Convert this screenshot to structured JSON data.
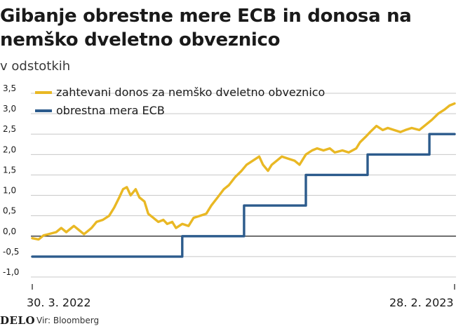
{
  "header": {
    "title": "Gibanje obrestne mere ECB in donosa na nemško dveletno obveznico",
    "subtitle": "v odstotkih"
  },
  "footer": {
    "logo": "DELO",
    "source": "Vir: Bloomberg"
  },
  "colors": {
    "yield": "#e9b824",
    "ecb": "#2c5b8c",
    "grid": "#c8c8c8"
  },
  "chart_data": {
    "type": "line",
    "title": "Gibanje obrestne mere ECB in donosa na nemško dveletno obveznico",
    "subtitle": "v odstotkih",
    "ylim": [
      -1.0,
      3.5
    ],
    "yticks": [
      -1.0,
      -0.5,
      0.0,
      0.5,
      1.0,
      1.5,
      2.0,
      2.5,
      3.0,
      3.5
    ],
    "ytick_labels": [
      "-1,0",
      "-0,5",
      "0,0",
      "0,5",
      "1,0",
      "1,5",
      "2,0",
      "2,5",
      "3,0",
      "3,5"
    ],
    "xlim": [
      "2022-03-30",
      "2023-02-28"
    ],
    "xtick_labels": [
      {
        "date": "2022-03-30",
        "label": "30. 3. 2022"
      },
      {
        "date": "2023-02-28",
        "label": "28. 2. 2023"
      }
    ],
    "grid": true,
    "legend_position": "top-left",
    "series": [
      {
        "name": "zahtevani donos za nemško dveletno obveznico",
        "color": "#e9b824",
        "step": false,
        "points": [
          [
            "2022-03-30",
            -0.05
          ],
          [
            "2022-04-04",
            -0.08
          ],
          [
            "2022-04-08",
            0.02
          ],
          [
            "2022-04-12",
            0.05
          ],
          [
            "2022-04-18",
            0.1
          ],
          [
            "2022-04-22",
            0.2
          ],
          [
            "2022-04-26",
            0.1
          ],
          [
            "2022-05-02",
            0.25
          ],
          [
            "2022-05-06",
            0.15
          ],
          [
            "2022-05-10",
            0.05
          ],
          [
            "2022-05-16",
            0.2
          ],
          [
            "2022-05-20",
            0.35
          ],
          [
            "2022-05-25",
            0.4
          ],
          [
            "2022-05-30",
            0.5
          ],
          [
            "2022-06-03",
            0.7
          ],
          [
            "2022-06-07",
            0.95
          ],
          [
            "2022-06-10",
            1.15
          ],
          [
            "2022-06-13",
            1.2
          ],
          [
            "2022-06-16",
            1.0
          ],
          [
            "2022-06-20",
            1.15
          ],
          [
            "2022-06-23",
            0.95
          ],
          [
            "2022-06-27",
            0.85
          ],
          [
            "2022-06-30",
            0.55
          ],
          [
            "2022-07-04",
            0.45
          ],
          [
            "2022-07-08",
            0.35
          ],
          [
            "2022-07-12",
            0.4
          ],
          [
            "2022-07-15",
            0.3
          ],
          [
            "2022-07-19",
            0.35
          ],
          [
            "2022-07-22",
            0.2
          ],
          [
            "2022-07-27",
            0.3
          ],
          [
            "2022-08-01",
            0.25
          ],
          [
            "2022-08-05",
            0.45
          ],
          [
            "2022-08-10",
            0.5
          ],
          [
            "2022-08-15",
            0.55
          ],
          [
            "2022-08-19",
            0.75
          ],
          [
            "2022-08-24",
            0.95
          ],
          [
            "2022-08-29",
            1.15
          ],
          [
            "2022-09-02",
            1.25
          ],
          [
            "2022-09-07",
            1.45
          ],
          [
            "2022-09-12",
            1.6
          ],
          [
            "2022-09-16",
            1.75
          ],
          [
            "2022-09-21",
            1.85
          ],
          [
            "2022-09-26",
            1.95
          ],
          [
            "2022-09-29",
            1.75
          ],
          [
            "2022-10-03",
            1.6
          ],
          [
            "2022-10-06",
            1.75
          ],
          [
            "2022-10-10",
            1.85
          ],
          [
            "2022-10-14",
            1.95
          ],
          [
            "2022-10-19",
            1.9
          ],
          [
            "2022-10-24",
            1.85
          ],
          [
            "2022-10-28",
            1.75
          ],
          [
            "2022-11-02",
            2.0
          ],
          [
            "2022-11-07",
            2.1
          ],
          [
            "2022-11-11",
            2.15
          ],
          [
            "2022-11-16",
            2.1
          ],
          [
            "2022-11-21",
            2.15
          ],
          [
            "2022-11-25",
            2.05
          ],
          [
            "2022-12-01",
            2.1
          ],
          [
            "2022-12-06",
            2.05
          ],
          [
            "2022-12-12",
            2.15
          ],
          [
            "2022-12-15",
            2.3
          ],
          [
            "2022-12-20",
            2.45
          ],
          [
            "2022-12-23",
            2.55
          ],
          [
            "2022-12-28",
            2.7
          ],
          [
            "2023-01-02",
            2.6
          ],
          [
            "2023-01-06",
            2.65
          ],
          [
            "2023-01-11",
            2.6
          ],
          [
            "2023-01-16",
            2.55
          ],
          [
            "2023-01-20",
            2.6
          ],
          [
            "2023-01-25",
            2.65
          ],
          [
            "2023-01-31",
            2.6
          ],
          [
            "2023-02-06",
            2.75
          ],
          [
            "2023-02-10",
            2.85
          ],
          [
            "2023-02-15",
            3.0
          ],
          [
            "2023-02-20",
            3.1
          ],
          [
            "2023-02-24",
            3.2
          ],
          [
            "2023-02-28",
            3.25
          ]
        ]
      },
      {
        "name": "obrestna mera ECB",
        "color": "#2c5b8c",
        "step": true,
        "points": [
          [
            "2022-03-30",
            -0.5
          ],
          [
            "2022-07-27",
            0.0
          ],
          [
            "2022-09-14",
            0.75
          ],
          [
            "2022-11-02",
            1.5
          ],
          [
            "2022-12-21",
            2.0
          ],
          [
            "2023-02-08",
            2.5
          ],
          [
            "2023-02-28",
            2.5
          ]
        ]
      }
    ]
  }
}
